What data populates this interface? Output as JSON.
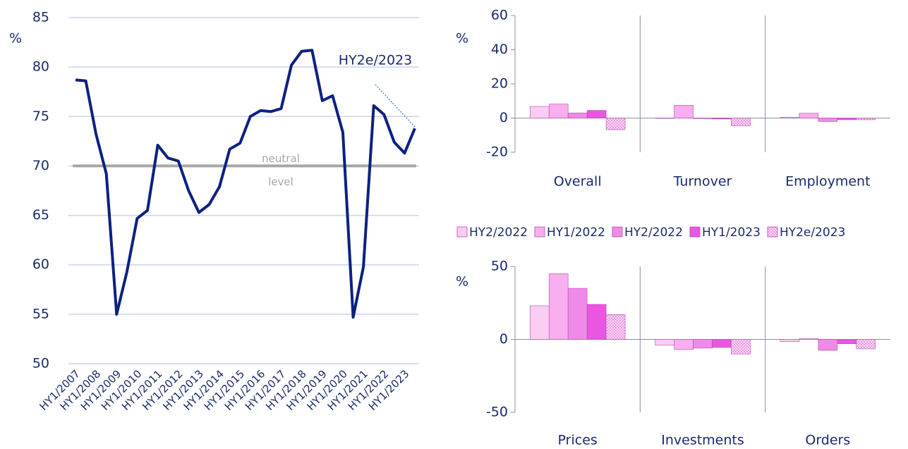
{
  "chart_data": [
    {
      "type": "line",
      "ylabel": "%",
      "categories": [
        "HY1/2007",
        null,
        "HY1/2008",
        null,
        "HY1/2009",
        null,
        "HY1/2010",
        null,
        "HY1/2011",
        null,
        "HY1/2012",
        null,
        "HY1/2013",
        null,
        "HY1/2014",
        null,
        "HY1/2015",
        null,
        "HY1/2016",
        null,
        "HY1/2017",
        null,
        "HY1/2018",
        null,
        "HY1/2019",
        null,
        "HY1/2020",
        null,
        "HY1/2021",
        null,
        "HY1/2022",
        null,
        "HY1/2023",
        null
      ],
      "values": [
        78.7,
        78.6,
        73.2,
        69.2,
        55.0,
        59.3,
        64.7,
        65.5,
        72.1,
        70.8,
        70.5,
        67.5,
        65.3,
        66.1,
        67.9,
        71.7,
        72.3,
        75.0,
        75.6,
        75.5,
        75.8,
        80.2,
        81.6,
        81.7,
        76.6,
        77.1,
        73.4,
        54.7,
        59.8,
        76.1,
        75.2,
        72.4,
        71.3,
        73.8
      ],
      "color": "#0c2180",
      "ylim": [
        50,
        85
      ],
      "yticks": [
        50,
        55,
        60,
        65,
        70,
        75,
        80,
        85
      ],
      "grid": true,
      "neutral_level": 70,
      "neutral_color": "#a6a6a6",
      "neutral_annotation": [
        "neutral",
        "level"
      ],
      "end_annotation": "HY2e/2023"
    },
    {
      "type": "bar",
      "ylabel": "%",
      "categories": [
        "Overall",
        "Turnover",
        "Employment"
      ],
      "ylim": [
        -20,
        60
      ],
      "yticks": [
        -20,
        0,
        20,
        40,
        60
      ],
      "legend": "bottom",
      "series": [
        {
          "name": "HY2/2022",
          "color": "#fbcdf3",
          "values": [
            6.8,
            -0.2,
            0.5
          ]
        },
        {
          "name": "HY1/2022",
          "color": "#f8aeef",
          "values": [
            8.2,
            7.5,
            2.8
          ]
        },
        {
          "name": "HY2/2022",
          "color": "#f08ae8",
          "values": [
            3.0,
            -0.3,
            -2.0
          ]
        },
        {
          "name": "HY1/2023",
          "color": "#ea55e2",
          "values": [
            4.5,
            -0.5,
            -1.0
          ]
        },
        {
          "name": "HY2e/2023",
          "color": "#f8c4f0",
          "pattern": "dots",
          "values": [
            -6.8,
            -4.5,
            -1.0
          ]
        }
      ]
    },
    {
      "type": "bar",
      "ylabel": "%",
      "categories": [
        "Prices",
        "Investments",
        "Orders"
      ],
      "ylim": [
        -50,
        50
      ],
      "yticks": [
        -50,
        0,
        50
      ],
      "series": [
        {
          "color": "#fbcdf3",
          "values": [
            23,
            -4,
            -1.5
          ]
        },
        {
          "color": "#f8aeef",
          "values": [
            45,
            -7,
            0.5
          ]
        },
        {
          "color": "#f08ae8",
          "values": [
            35,
            -6,
            -7.5
          ]
        },
        {
          "color": "#ea55e2",
          "values": [
            24,
            -5.5,
            -3
          ]
        },
        {
          "color": "#f8c4f0",
          "pattern": "dots",
          "values": [
            17,
            -10,
            -6.5
          ]
        }
      ]
    }
  ]
}
